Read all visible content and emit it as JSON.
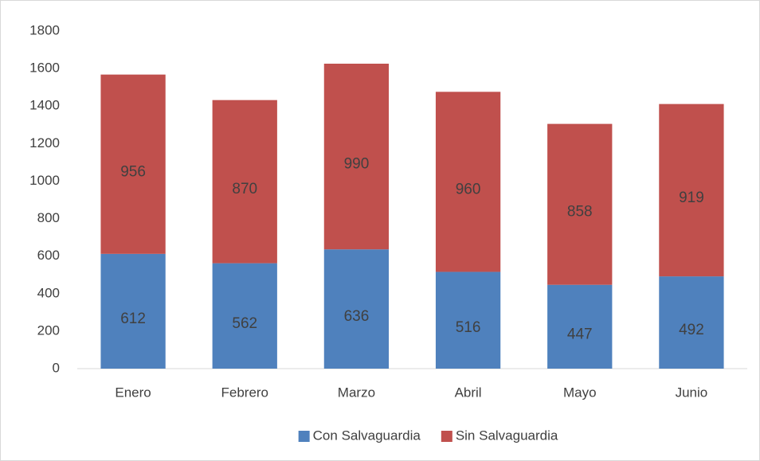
{
  "chart_data": {
    "type": "stacked_bar",
    "categories": [
      "Enero",
      "Febrero",
      "Marzo",
      "Abril",
      "Mayo",
      "Junio"
    ],
    "series": [
      {
        "name": "Con Salvaguardia",
        "color": "#4f81bd",
        "values": [
          612,
          562,
          636,
          516,
          447,
          492
        ]
      },
      {
        "name": "Sin Salvaguardia",
        "color": "#c0504d",
        "values": [
          956,
          870,
          990,
          960,
          858,
          919
        ]
      }
    ],
    "ylim": [
      0,
      1800
    ],
    "yticks": [
      0,
      200,
      400,
      600,
      800,
      1000,
      1200,
      1400,
      1600,
      1800
    ],
    "grid": false,
    "legend": "bottom"
  }
}
